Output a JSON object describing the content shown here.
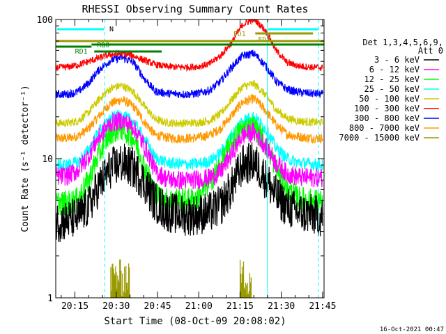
{
  "chart_data": {
    "type": "line",
    "title": "RHESSI Observing Summary Count Rates",
    "xlabel": "Start Time (08-Oct-09 20:08:02)",
    "ylabel": "Count Rate (s⁻¹ detector⁻¹)",
    "yscale": "log",
    "ylim": [
      1,
      100
    ],
    "xlim_minutes": [
      0,
      97.5
    ],
    "x_tick_labels": [
      "20:15",
      "20:30",
      "20:45",
      "21:00",
      "21:15",
      "21:30",
      "21:45"
    ],
    "x_tick_minutes": [
      6.97,
      21.97,
      36.97,
      51.97,
      66.97,
      81.97,
      96.97
    ],
    "y_tick_labels": [
      "1",
      "10",
      "100"
    ],
    "y_tick_values": [
      1,
      10,
      100
    ],
    "legend_title": "Det 1,3,4,5,6,9,",
    "legend_subtitle": "Att 0",
    "legend_placement": "right",
    "grid": false,
    "x_minutes": [
      0,
      4,
      8,
      12,
      16,
      20,
      24,
      28,
      32,
      36,
      40,
      44,
      48,
      52,
      56,
      60,
      64,
      68,
      72,
      76,
      80,
      84,
      88,
      92,
      97
    ],
    "series": [
      {
        "name": "3 - 6 keV",
        "color": "#000000",
        "values": [
          3.5,
          3.6,
          3.8,
          4.5,
          6.5,
          8.5,
          9.3,
          8.6,
          6.8,
          4.9,
          4.2,
          4.0,
          3.9,
          4.0,
          4.1,
          4.6,
          6.2,
          9.0,
          9.5,
          7.3,
          5.4,
          4.5,
          4.1,
          4.0,
          3.8
        ]
      },
      {
        "name": "6 - 12 keV",
        "color": "#ff00ff",
        "values": [
          7.5,
          7.5,
          8.2,
          10.5,
          14.5,
          18.0,
          18.8,
          17.0,
          12.5,
          8.2,
          7.2,
          7.0,
          7.0,
          7.1,
          7.3,
          8.0,
          10.8,
          14.8,
          15.5,
          12.5,
          9.3,
          7.8,
          7.4,
          7.3,
          7.3
        ]
      },
      {
        "name": "12 - 25 keV",
        "color": "#00ff00",
        "values": [
          4.8,
          4.8,
          5.1,
          7.0,
          11.0,
          15.5,
          16.5,
          14.2,
          9.0,
          5.6,
          5.0,
          5.1,
          5.0,
          5.2,
          6.8,
          9.0,
          13.0,
          16.5,
          17.0,
          13.0,
          8.5,
          6.0,
          5.2,
          5.0,
          4.9
        ]
      },
      {
        "name": "25 - 50 keV",
        "color": "#00ffff",
        "values": [
          9.0,
          9.0,
          9.4,
          11.5,
          16.0,
          19.5,
          20.5,
          18.5,
          14.0,
          10.2,
          9.4,
          9.2,
          9.1,
          9.2,
          9.6,
          11.0,
          14.8,
          19.0,
          20.0,
          16.5,
          12.0,
          10.0,
          9.4,
          9.2,
          9.0
        ]
      },
      {
        "name": "50 - 100 keV",
        "color": "#cccc00",
        "values": [
          18.0,
          18.0,
          18.6,
          21.5,
          27.0,
          32.0,
          33.5,
          30.5,
          24.0,
          19.2,
          18.2,
          18.0,
          18.0,
          18.2,
          18.8,
          21.0,
          26.5,
          33.0,
          34.5,
          29.0,
          22.5,
          19.5,
          18.7,
          18.3,
          18.2
        ]
      },
      {
        "name": "100 - 300 keV",
        "color": "#ff0000",
        "values": [
          45.0,
          45.5,
          47.0,
          50.0,
          53.0,
          56.0,
          57.0,
          55.0,
          51.0,
          47.5,
          46.0,
          45.5,
          45.5,
          46.0,
          48.0,
          55.0,
          68.0,
          92.0,
          101.0,
          84.0,
          60.0,
          49.0,
          46.5,
          45.5,
          45.0
        ]
      },
      {
        "name": "300 - 800 keV",
        "color": "#0000ff",
        "values": [
          29.0,
          29.0,
          30.0,
          35.0,
          44.0,
          51.0,
          53.5,
          49.5,
          38.0,
          30.5,
          29.5,
          29.2,
          29.0,
          29.5,
          31.0,
          36.0,
          45.5,
          55.0,
          57.0,
          47.0,
          36.0,
          31.5,
          30.0,
          29.5,
          29.0
        ]
      },
      {
        "name": "800 - 7000 keV",
        "color": "#ff9900",
        "values": [
          14.0,
          14.0,
          14.5,
          16.5,
          20.5,
          25.0,
          26.5,
          24.0,
          18.5,
          14.8,
          14.2,
          14.0,
          14.0,
          14.2,
          14.8,
          16.5,
          20.5,
          25.5,
          27.0,
          22.5,
          17.5,
          15.0,
          14.4,
          14.1,
          14.0
        ]
      },
      {
        "name": "7000 - 15000 keV",
        "color": "#999900",
        "values": []
      }
    ],
    "annotations": [
      {
        "label": "N",
        "color": "#00ffff"
      },
      {
        "label": "RD0",
        "color": "#008000"
      },
      {
        "label": "RD1",
        "color": "#008000"
      },
      {
        "label": "FD1",
        "color": "#999900"
      },
      {
        "label": "FD2",
        "color": "#999900"
      }
    ]
  },
  "footer": {
    "timestamp": "16-Oct-2021 00:47"
  }
}
